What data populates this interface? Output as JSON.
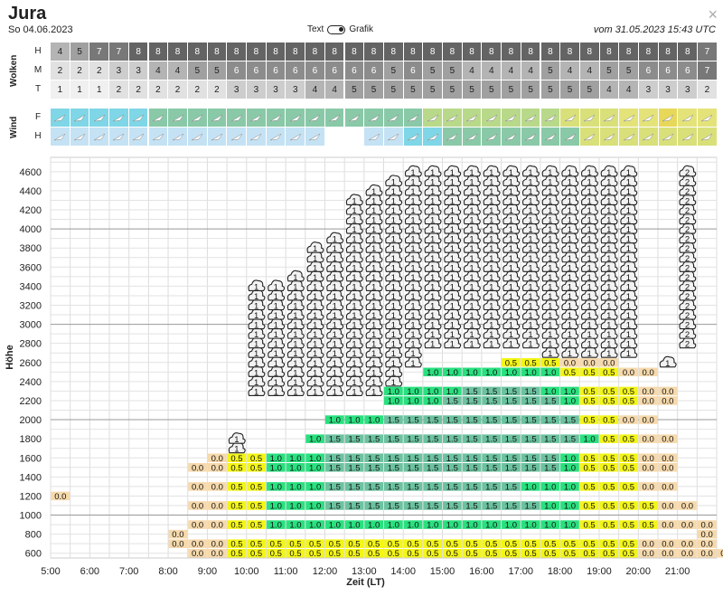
{
  "header": {
    "title": "Jura",
    "date": "So 04.06.2023",
    "toggle_left": "Text",
    "toggle_right": "Grafik",
    "updated": "vom 31.05.2023 15:43 UTC",
    "close": "×"
  },
  "clouds": {
    "label": "Wolken",
    "rows": [
      {
        "label": "H",
        "values": [
          4,
          5,
          7,
          7,
          8,
          8,
          8,
          8,
          8,
          8,
          8,
          8,
          8,
          8,
          8,
          8,
          8,
          8,
          8,
          8,
          8,
          8,
          8,
          8,
          8,
          8,
          8,
          8,
          8,
          8,
          8,
          8,
          8,
          7
        ]
      },
      {
        "label": "M",
        "values": [
          2,
          2,
          2,
          3,
          3,
          4,
          4,
          5,
          5,
          6,
          6,
          6,
          6,
          6,
          6,
          6,
          6,
          5,
          6,
          5,
          5,
          4,
          4,
          4,
          4,
          5,
          4,
          4,
          5,
          5,
          6,
          6,
          6,
          7
        ]
      },
      {
        "label": "T",
        "values": [
          1,
          1,
          1,
          2,
          2,
          2,
          2,
          2,
          2,
          3,
          3,
          3,
          3,
          4,
          4,
          5,
          5,
          5,
          5,
          5,
          5,
          5,
          5,
          5,
          5,
          5,
          5,
          5,
          4,
          4,
          3,
          3,
          3,
          2
        ]
      }
    ]
  },
  "wind": {
    "label": "Wind",
    "rows": [
      {
        "label": "F",
        "colors": [
          "#7fd6e6",
          "#7fd6e6",
          "#7fd6e6",
          "#7fd6e6",
          "#7fd6e6",
          "#8ac9a8",
          "#8ac9a8",
          "#8ac9a8",
          "#8ac9a8",
          "#8ac9a8",
          "#8ac9a8",
          "#8ac9a8",
          "#8ac9a8",
          "#8ac9a8",
          "#8ac9a8",
          "#8ac9a8",
          "#8ac9a8",
          "#8ac9a8",
          "#8ac9a8",
          "#b9d98a",
          "#b9d98a",
          "#b9d98a",
          "#b9d98a",
          "#b9d98a",
          "#b9d98a",
          "#b9d98a",
          "#d9e07a",
          "#d9e07a",
          "#d9e07a",
          "#e4e37a",
          "#e4e37a",
          "#e8d85a",
          "#e4e37a",
          "#e4e37a"
        ]
      },
      {
        "label": "H",
        "colors": [
          "#c4e2f4",
          "#c4e2f4",
          "#c4e2f4",
          "#c4e2f4",
          "#c4e2f4",
          "#c4e2f4",
          "#c4e2f4",
          "#c4e2f4",
          "#c4e2f4",
          "#c4e2f4",
          "#c4e2f4",
          "#c4e2f4",
          "#c4e2f4",
          "#c4e2f4",
          "#ffffff",
          "#ffffff",
          "#c4e2f4",
          "#c4e2f4",
          "#7fd6e6",
          "#7fd6e6",
          "#8ac9a8",
          "#8ac9a8",
          "#8ac9a8",
          "#8ac9a8",
          "#8ac9a8",
          "#8ac9a8",
          "#8ac9a8",
          "#d9e07a",
          "#d9e07a",
          "#d9e07a",
          "#d9e07a",
          "#d9e07a",
          "#d9e07a",
          "#d9e07a"
        ]
      }
    ]
  },
  "chart_data": {
    "type": "heatmap",
    "xlabel": "Zeit (LT)",
    "ylabel": "Höhe",
    "x_ticks": [
      "5:00",
      "6:00",
      "7:00",
      "8:00",
      "9:00",
      "10:00",
      "11:00",
      "12:00",
      "13:00",
      "14:00",
      "15:00",
      "16:00",
      "17:00",
      "18:00",
      "19:00",
      "20:00",
      "21:00"
    ],
    "y_ticks": [
      600,
      800,
      1000,
      1200,
      1400,
      1600,
      1800,
      2000,
      2200,
      2400,
      2600,
      2800,
      3000,
      3200,
      3400,
      3600,
      3800,
      4000,
      4200,
      4400,
      4600
    ],
    "x_start": "5:00",
    "x_step_minutes": 30,
    "y_start": 600,
    "y_step": 100,
    "colors": {
      "0.0": "#f6d9ac",
      "0.5": "#f3f518",
      "1.0": "#29e07f",
      "1.5": "#6cc2a0"
    },
    "grid": {
      "0.0": [
        "0:7-26",
        "1:8-26,35-38",
        "2:10-26,35-38",
        "3:11-27,35-37",
        "4:12-28",
        "5:14-28",
        "6:15-28",
        "7:16-28",
        "8:16-28",
        "9:17-28",
        "10:18-28",
        "11:19-28",
        "12:20-28",
        "13:21-27"
      ]
    },
    "columns": [
      {
        "c": 0,
        "cells": {
          "1000-1200": "0.0"
        }
      },
      {
        "c": 6,
        "cells": {
          "700": "0.0",
          "800": "0.0"
        }
      },
      {
        "c": 7,
        "cells": {
          "600": "0.0",
          "700": "0.0",
          "1000": "0.0",
          "1100": "0.0",
          "1200": "0.0",
          "1300": "0.0"
        }
      },
      {
        "c": 8,
        "cells": {
          "600": "0.0",
          "700": "0.5",
          "800": "0.0",
          "900": "0.0",
          "1000": "0.0",
          "1100": "0.0",
          "1200": "0.0",
          "1300": "0.0",
          "1400": "0.0",
          "1500": "0.0",
          "1600": "0.0"
        }
      },
      {
        "c": 9,
        "cells": {
          "600": "0.0",
          "700": "0.5",
          "800": "0.0",
          "900": "0.5",
          "1000": "0.5",
          "1100": "0.5",
          "1200": "0.5",
          "1300": "0.5",
          "1400": "0.5",
          "1500": "0.5",
          "1600": "0.5"
        }
      },
      {
        "c": 10,
        "cells": {
          "600": "0.5",
          "700": "0.5",
          "800": "0.5",
          "900": "0.5",
          "1000": "0.5",
          "1100": "0.5",
          "1200": "0.5",
          "1300": "0.5",
          "1400": "0.5",
          "1500": "0.5",
          "1600": "0.5"
        }
      }
    ],
    "cloud_cells": {
      "layer1": "1",
      "layer2": "2"
    }
  }
}
